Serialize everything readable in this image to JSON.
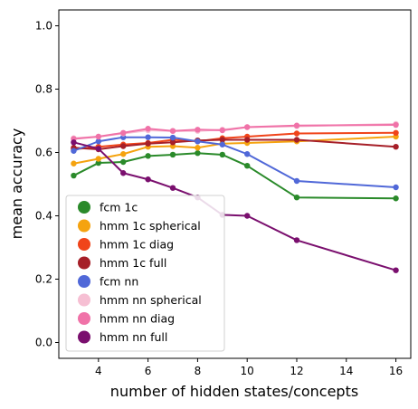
{
  "chart_data": {
    "type": "line",
    "title": "",
    "xlabel": "number of hidden states/concepts",
    "ylabel": "mean accuracy",
    "xlim": [
      2.4,
      16.6
    ],
    "ylim": [
      -0.05,
      1.05
    ],
    "xticks": [
      4,
      6,
      8,
      10,
      12,
      14,
      16
    ],
    "yticks": [
      0.0,
      0.2,
      0.4,
      0.6,
      0.8,
      1.0
    ],
    "xtick_labels": [
      "4",
      "6",
      "8",
      "10",
      "12",
      "14",
      "16"
    ],
    "ytick_labels": [
      "0.0",
      "0.2",
      "0.4",
      "0.6",
      "0.8",
      "1.0"
    ],
    "grid": false,
    "legend_position": "lower-left",
    "x": [
      3,
      4,
      5,
      6,
      7,
      8,
      9,
      10,
      12,
      16
    ],
    "series": [
      {
        "name": "fcm 1c",
        "color": "#2a8a2a",
        "values": [
          0.527,
          0.567,
          0.57,
          0.589,
          0.593,
          0.598,
          0.593,
          0.558,
          0.458,
          0.455
        ]
      },
      {
        "name": "hmm 1c spherical",
        "color": "#f5a30f",
        "values": [
          0.565,
          0.58,
          0.595,
          0.618,
          0.62,
          0.615,
          0.628,
          0.63,
          0.635,
          0.65
        ]
      },
      {
        "name": "hmm 1c diag",
        "color": "#f0441a",
        "values": [
          0.61,
          0.618,
          0.625,
          0.63,
          0.64,
          0.635,
          0.645,
          0.65,
          0.66,
          0.662
        ]
      },
      {
        "name": "hmm 1c full",
        "color": "#a61f28",
        "values": [
          0.615,
          0.61,
          0.62,
          0.628,
          0.632,
          0.638,
          0.64,
          0.64,
          0.64,
          0.618
        ]
      },
      {
        "name": "fcm nn",
        "color": "#5068d8",
        "values": [
          0.605,
          0.635,
          0.648,
          0.648,
          0.647,
          0.635,
          0.625,
          0.595,
          0.51,
          0.49
        ]
      },
      {
        "name": "hmm nn spherical",
        "color": "#f6bfd3",
        "values": [
          0.645,
          0.65,
          0.66,
          0.67,
          0.668,
          0.668,
          0.672,
          0.68,
          0.683,
          0.69
        ]
      },
      {
        "name": "hmm nn diag",
        "color": "#f072a8",
        "values": [
          0.643,
          0.65,
          0.662,
          0.675,
          0.668,
          0.672,
          0.67,
          0.68,
          0.685,
          0.687
        ]
      },
      {
        "name": "hmm nn full",
        "color": "#7a0f6e",
        "values": [
          0.632,
          0.612,
          0.535,
          0.515,
          0.488,
          0.458,
          0.403,
          0.4,
          0.323,
          0.228
        ]
      }
    ]
  }
}
